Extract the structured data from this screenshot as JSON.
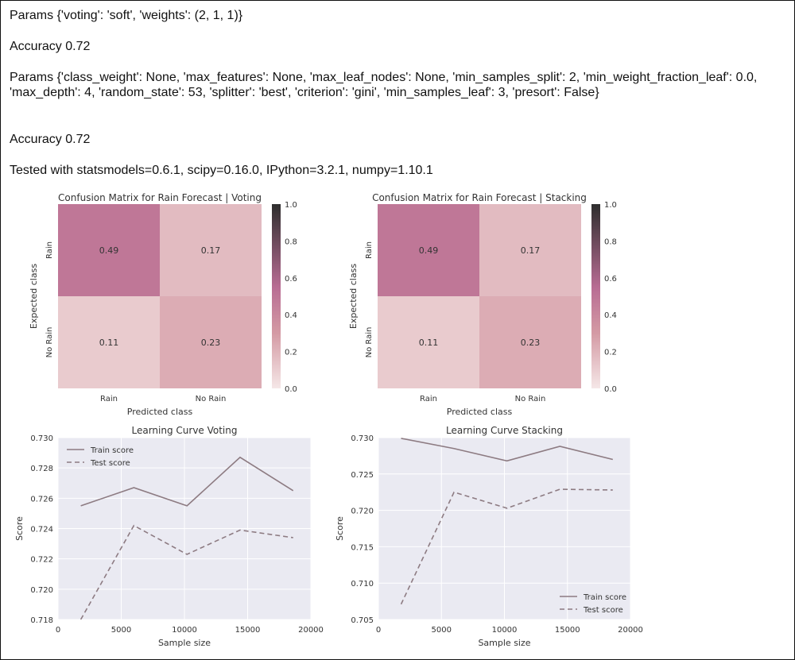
{
  "output_lines": [
    "Params {'voting': 'soft', 'weights': (2, 1, 1)}",
    "Accuracy 0.72",
    "Params {'class_weight': None, 'max_features': None, 'max_leaf_nodes': None, 'min_samples_split': 2, 'min_weight_fraction_leaf': 0.0, 'max_depth': 4, 'random_state': 53, 'splitter': 'best', 'criterion': 'gini', 'min_samples_leaf': 3, 'presort': False}",
    "Accuracy 0.72",
    "Tested with statsmodels=0.6.1, scipy=0.16.0, IPython=3.2.1, numpy=1.10.1"
  ],
  "colors": {
    "heat_min": "#f5e7e7",
    "heat_mid": "#d49aa4",
    "heat_high": "#b86c93",
    "heat_max": "#2e2e2e",
    "plot_bg": "#eaeaf2",
    "grid": "#ffffff",
    "line": "#8d7b82"
  },
  "chart_data": [
    {
      "type": "heatmap",
      "title": "Confusion Matrix for Rain Forecast | Voting",
      "xlabel": "Predicted class",
      "ylabel": "Expected class",
      "x_categories": [
        "Rain",
        "No Rain"
      ],
      "y_categories": [
        "Rain",
        "No Rain"
      ],
      "values": [
        [
          0.49,
          0.17
        ],
        [
          0.11,
          0.23
        ]
      ],
      "colorbar": {
        "range": [
          0.0,
          1.0
        ],
        "ticks": [
          "0.0",
          "0.2",
          "0.4",
          "0.6",
          "0.8",
          "1.0"
        ]
      }
    },
    {
      "type": "heatmap",
      "title": "Confusion Matrix for Rain Forecast | Stacking",
      "xlabel": "Predicted class",
      "ylabel": "Expected class",
      "x_categories": [
        "Rain",
        "No Rain"
      ],
      "y_categories": [
        "Rain",
        "No Rain"
      ],
      "values": [
        [
          0.49,
          0.17
        ],
        [
          0.11,
          0.23
        ]
      ],
      "colorbar": {
        "range": [
          0.0,
          1.0
        ],
        "ticks": [
          "0.0",
          "0.2",
          "0.4",
          "0.6",
          "0.8",
          "1.0"
        ]
      }
    },
    {
      "type": "line",
      "title": "Learning Curve Voting",
      "xlabel": "Sample size",
      "ylabel": "Score",
      "xlim": [
        0,
        20000
      ],
      "ylim": [
        0.718,
        0.73
      ],
      "xticks": [
        "0",
        "5000",
        "10000",
        "15000",
        "20000"
      ],
      "yticks": [
        "0.718",
        "0.720",
        "0.722",
        "0.724",
        "0.726",
        "0.728",
        "0.730"
      ],
      "legend": "top-left",
      "grid": true,
      "series": [
        {
          "name": "Train score",
          "style": "solid",
          "x": [
            1800,
            6000,
            10200,
            14400,
            18600
          ],
          "y": [
            0.7255,
            0.7267,
            0.7255,
            0.7287,
            0.7265
          ]
        },
        {
          "name": "Test score",
          "style": "dashed",
          "x": [
            1800,
            6000,
            10200,
            14400,
            18600
          ],
          "y": [
            0.718,
            0.7242,
            0.7223,
            0.7239,
            0.7234
          ]
        }
      ]
    },
    {
      "type": "line",
      "title": "Learning Curve Stacking",
      "xlabel": "Sample size",
      "ylabel": "Score",
      "xlim": [
        0,
        20000
      ],
      "ylim": [
        0.705,
        0.73
      ],
      "xticks": [
        "0",
        "5000",
        "10000",
        "15000",
        "20000"
      ],
      "yticks": [
        "0.705",
        "0.710",
        "0.715",
        "0.720",
        "0.725",
        "0.730"
      ],
      "legend": "bottom-right",
      "grid": true,
      "series": [
        {
          "name": "Train score",
          "style": "solid",
          "x": [
            1800,
            6000,
            10200,
            14400,
            18600
          ],
          "y": [
            0.7299,
            0.7285,
            0.7268,
            0.7288,
            0.727
          ]
        },
        {
          "name": "Test score",
          "style": "dashed",
          "x": [
            1800,
            6000,
            10200,
            14400,
            18600
          ],
          "y": [
            0.7071,
            0.7225,
            0.7203,
            0.7229,
            0.7228
          ]
        }
      ]
    }
  ]
}
